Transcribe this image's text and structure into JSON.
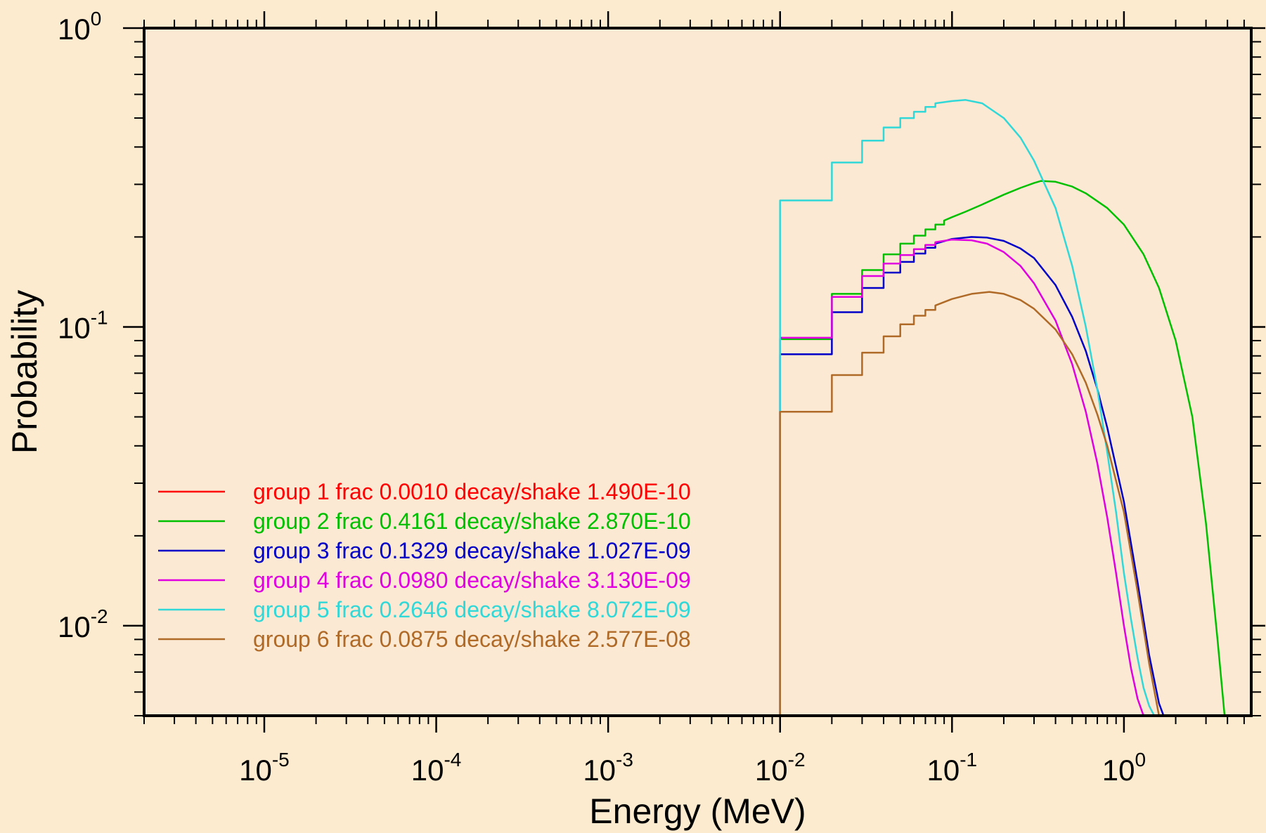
{
  "chart_data": {
    "type": "line",
    "title": "",
    "xlabel": "Energy (MeV)",
    "ylabel": "Probability",
    "x_scale": "log",
    "y_scale": "log",
    "xlim": [
      2e-06,
      5.5
    ],
    "ylim": [
      0.005,
      1.0
    ],
    "grid": false,
    "legend_position": "lower-left",
    "colors": {
      "background": "#fdebd0",
      "plot_background": "#fbe9d3",
      "axes": "#000000"
    },
    "x_ticks": [
      {
        "base": "10",
        "exp": "-5",
        "value": 1e-05
      },
      {
        "base": "10",
        "exp": "-4",
        "value": 0.0001
      },
      {
        "base": "10",
        "exp": "-3",
        "value": 0.001
      },
      {
        "base": "10",
        "exp": "-2",
        "value": 0.01
      },
      {
        "base": "10",
        "exp": "-1",
        "value": 0.1
      },
      {
        "base": "10",
        "exp": "0",
        "value": 1
      }
    ],
    "y_ticks": [
      {
        "base": "10",
        "exp": "0",
        "value": 1
      },
      {
        "base": "10",
        "exp": "-1",
        "value": 0.1
      },
      {
        "base": "10",
        "exp": "-2",
        "value": 0.01
      }
    ],
    "series": [
      {
        "name": "group 1 frac 0.0010 decay/shake 1.490E-10",
        "color": "#ff0000",
        "x": [
          0.01,
          1.2
        ],
        "y": [
          0.005,
          0.005
        ]
      },
      {
        "name": "group 2 frac 0.4161 decay/shake 2.870E-10",
        "color": "#00c000",
        "x": [
          0.01,
          0.01,
          0.02,
          0.02,
          0.03,
          0.03,
          0.04,
          0.04,
          0.05,
          0.05,
          0.06,
          0.06,
          0.07,
          0.07,
          0.08,
          0.08,
          0.09,
          0.09,
          0.1,
          0.12,
          0.15,
          0.2,
          0.25,
          0.3,
          0.33,
          0.4,
          0.5,
          0.6,
          0.8,
          1.0,
          1.3,
          1.6,
          2.0,
          2.5,
          3.0,
          3.5,
          3.85
        ],
        "y": [
          0.005,
          0.091,
          0.091,
          0.129,
          0.129,
          0.155,
          0.155,
          0.175,
          0.175,
          0.19,
          0.19,
          0.202,
          0.202,
          0.212,
          0.212,
          0.22,
          0.22,
          0.227,
          0.233,
          0.243,
          0.257,
          0.277,
          0.292,
          0.303,
          0.308,
          0.306,
          0.295,
          0.28,
          0.25,
          0.22,
          0.175,
          0.135,
          0.09,
          0.05,
          0.022,
          0.009,
          0.005
        ]
      },
      {
        "name": "group 3 frac 0.1329 decay/shake 1.027E-09",
        "color": "#0000c8",
        "x": [
          0.01,
          0.01,
          0.02,
          0.02,
          0.03,
          0.03,
          0.04,
          0.04,
          0.05,
          0.05,
          0.06,
          0.06,
          0.07,
          0.07,
          0.08,
          0.08,
          0.1,
          0.13,
          0.16,
          0.2,
          0.25,
          0.3,
          0.4,
          0.5,
          0.6,
          0.7,
          0.8,
          1.0,
          1.2,
          1.4,
          1.6,
          1.7
        ],
        "y": [
          0.005,
          0.081,
          0.081,
          0.112,
          0.112,
          0.135,
          0.135,
          0.152,
          0.152,
          0.165,
          0.165,
          0.176,
          0.176,
          0.184,
          0.184,
          0.19,
          0.197,
          0.2,
          0.199,
          0.194,
          0.183,
          0.17,
          0.138,
          0.108,
          0.083,
          0.062,
          0.046,
          0.026,
          0.014,
          0.008,
          0.0055,
          0.005
        ]
      },
      {
        "name": "group 4 frac 0.0980 decay/shake 3.130E-09",
        "color": "#e000e0",
        "x": [
          0.01,
          0.01,
          0.02,
          0.02,
          0.03,
          0.03,
          0.04,
          0.04,
          0.05,
          0.05,
          0.06,
          0.06,
          0.07,
          0.07,
          0.08,
          0.08,
          0.1,
          0.13,
          0.16,
          0.2,
          0.25,
          0.3,
          0.4,
          0.5,
          0.6,
          0.7,
          0.8,
          0.9,
          1.0,
          1.1,
          1.2,
          1.3
        ],
        "y": [
          0.005,
          0.092,
          0.092,
          0.126,
          0.126,
          0.148,
          0.148,
          0.163,
          0.163,
          0.174,
          0.174,
          0.182,
          0.182,
          0.188,
          0.188,
          0.192,
          0.196,
          0.195,
          0.19,
          0.178,
          0.16,
          0.14,
          0.105,
          0.075,
          0.052,
          0.035,
          0.023,
          0.015,
          0.01,
          0.0072,
          0.0057,
          0.005
        ]
      },
      {
        "name": "group 5 frac 0.2646 decay/shake 8.072E-09",
        "color": "#30d8d8",
        "x": [
          0.01,
          0.01,
          0.02,
          0.02,
          0.03,
          0.03,
          0.04,
          0.04,
          0.05,
          0.05,
          0.06,
          0.06,
          0.07,
          0.07,
          0.08,
          0.08,
          0.1,
          0.12,
          0.15,
          0.2,
          0.25,
          0.3,
          0.4,
          0.5,
          0.6,
          0.7,
          0.8,
          0.9,
          1.0,
          1.1,
          1.2,
          1.3,
          1.4,
          1.5
        ],
        "y": [
          0.005,
          0.265,
          0.265,
          0.355,
          0.355,
          0.42,
          0.42,
          0.465,
          0.465,
          0.5,
          0.5,
          0.525,
          0.525,
          0.545,
          0.545,
          0.56,
          0.57,
          0.575,
          0.56,
          0.5,
          0.43,
          0.36,
          0.25,
          0.16,
          0.1,
          0.062,
          0.038,
          0.024,
          0.015,
          0.0105,
          0.0078,
          0.0062,
          0.0054,
          0.005
        ]
      },
      {
        "name": "group 6 frac 0.0875 decay/shake 2.577E-08",
        "color": "#b06a28",
        "x": [
          0.01,
          0.01,
          0.02,
          0.02,
          0.03,
          0.03,
          0.04,
          0.04,
          0.05,
          0.05,
          0.06,
          0.06,
          0.07,
          0.07,
          0.08,
          0.08,
          0.1,
          0.13,
          0.165,
          0.2,
          0.25,
          0.3,
          0.4,
          0.5,
          0.6,
          0.7,
          0.8,
          1.0,
          1.2,
          1.4,
          1.6
        ],
        "y": [
          0.005,
          0.052,
          0.052,
          0.069,
          0.069,
          0.082,
          0.082,
          0.093,
          0.093,
          0.102,
          0.102,
          0.109,
          0.109,
          0.114,
          0.114,
          0.118,
          0.124,
          0.129,
          0.131,
          0.129,
          0.123,
          0.115,
          0.098,
          0.081,
          0.065,
          0.051,
          0.04,
          0.024,
          0.013,
          0.0075,
          0.005
        ]
      }
    ]
  }
}
